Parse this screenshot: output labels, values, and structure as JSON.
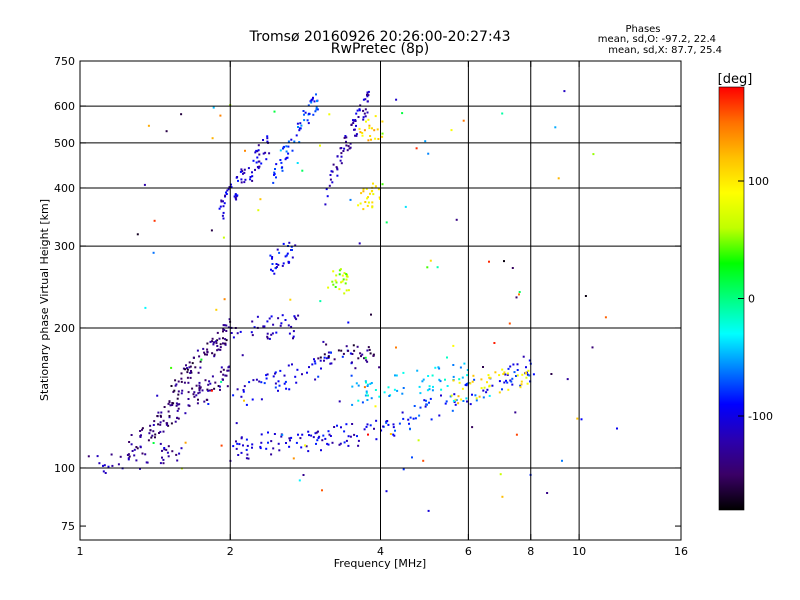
{
  "chart_data": {
    "type": "scatter",
    "title": "Tromsø 20160926 20:26:00-20:27:43",
    "subtitle": "RwPretec (8p)",
    "xlabel": "Frequency [MHz]",
    "ylabel": "Stationary phase Virtual Height [km]",
    "x_scale": "log",
    "y_scale": "log",
    "xlim": [
      1,
      16
    ],
    "ylim": [
      70,
      750
    ],
    "x_ticks": [
      1,
      2,
      4,
      6,
      8,
      10,
      16
    ],
    "x_tick_labels": [
      "1",
      "2",
      "4",
      "6",
      "8",
      "10",
      "16"
    ],
    "x_gridlines": [
      2,
      4,
      6,
      8,
      10
    ],
    "y_ticks": [
      75,
      100,
      200,
      300,
      400,
      500,
      600,
      750
    ],
    "y_tick_labels": [
      "75",
      "100",
      "200",
      "300",
      "400",
      "500",
      "600",
      "750"
    ],
    "y_gridlines": [
      100,
      200,
      300,
      400,
      500,
      600
    ],
    "grid": true,
    "colorbar": {
      "label": "[deg]",
      "range": [
        -180,
        180
      ],
      "ticks": [
        100,
        0,
        -100
      ],
      "tick_labels": [
        "100",
        "0",
        "-100"
      ],
      "colors": [
        "#000000",
        "#3a0066",
        "#2a00b0",
        "#0000ff",
        "#0080ff",
        "#00ffff",
        "#00ff80",
        "#00ff00",
        "#c0ff00",
        "#ffff00",
        "#ffc000",
        "#ff7000",
        "#ff0000"
      ]
    },
    "phases": {
      "title": "Phases",
      "line_o": "mean, sd,O: -97.2, 22.4",
      "line_x": "mean, sd,X: 87.7, 25.4"
    },
    "series": [
      {
        "x_range": [
          1.0,
          1.6
        ],
        "y_start": 100,
        "y_end": 108,
        "phase": -125,
        "n": 40
      },
      {
        "x_range": [
          1.25,
          2.0
        ],
        "y_start": 110,
        "y_end": 160,
        "phase": -140,
        "n": 120
      },
      {
        "x_range": [
          1.5,
          2.0
        ],
        "y_start": 140,
        "y_end": 200,
        "phase": -145,
        "n": 90
      },
      {
        "x_range": [
          2.0,
          4.0
        ],
        "y_start": 110,
        "y_end": 120,
        "phase": -105,
        "n": 90
      },
      {
        "x_range": [
          4.0,
          8.3
        ],
        "y_start": 120,
        "y_end": 165,
        "phase": -85,
        "n": 90
      },
      {
        "x_range": [
          2.0,
          3.5
        ],
        "y_start": 140,
        "y_end": 175,
        "phase": -100,
        "n": 60
      },
      {
        "x_range": [
          3.5,
          6.0
        ],
        "y_start": 145,
        "y_end": 160,
        "phase": -40,
        "n": 60
      },
      {
        "x_range": [
          5.5,
          8.0
        ],
        "y_start": 145,
        "y_end": 160,
        "phase": 100,
        "n": 40
      },
      {
        "x_range": [
          2.0,
          2.8
        ],
        "y_start": 200,
        "y_end": 202,
        "phase": -115,
        "n": 40
      },
      {
        "x_range": [
          3.0,
          4.0
        ],
        "y_start": 180,
        "y_end": 170,
        "phase": -145,
        "n": 35
      },
      {
        "x_range": [
          2.4,
          2.7
        ],
        "y_start": 270,
        "y_end": 300,
        "phase": -95,
        "n": 30
      },
      {
        "x_range": [
          3.2,
          3.5
        ],
        "y_start": 265,
        "y_end": 240,
        "phase": 60,
        "n": 25
      },
      {
        "x_range": [
          1.9,
          2.4
        ],
        "y_start": 350,
        "y_end": 500,
        "phase": -110,
        "n": 70
      },
      {
        "x_range": [
          2.4,
          3.0
        ],
        "y_start": 400,
        "y_end": 620,
        "phase": -80,
        "n": 60
      },
      {
        "x_range": [
          3.1,
          3.8
        ],
        "y_start": 380,
        "y_end": 620,
        "phase": -120,
        "n": 70
      },
      {
        "x_range": [
          3.6,
          4.0
        ],
        "y_start": 370,
        "y_end": 395,
        "phase": 100,
        "n": 25
      },
      {
        "x_range": [
          3.6,
          4.1
        ],
        "y_start": 520,
        "y_end": 550,
        "phase": 110,
        "n": 20
      },
      {
        "x_range": [
          1.3,
          12.0
        ],
        "y_start": 80,
        "y_end": 650,
        "phase": 0,
        "n": 120
      }
    ]
  }
}
